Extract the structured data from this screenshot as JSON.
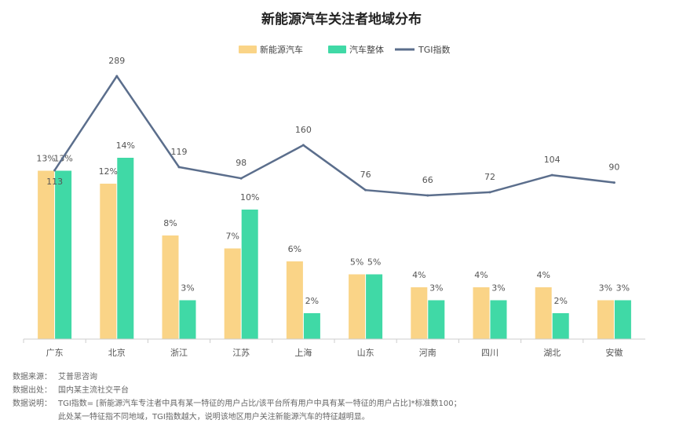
{
  "chart_data": {
    "type": "bar",
    "title": "新能源汽车关注者地域分布",
    "categories": [
      "广东",
      "北京",
      "浙江",
      "江苏",
      "上海",
      "山东",
      "河南",
      "四川",
      "湖北",
      "安徽"
    ],
    "series": [
      {
        "name": "新能源汽车",
        "type": "bar",
        "color": "#fad487",
        "values": [
          13,
          12,
          8,
          7,
          6,
          5,
          4,
          4,
          4,
          3
        ],
        "labels": [
          "13%",
          "12%",
          "8%",
          "7%",
          "6%",
          "5%",
          "4%",
          "4%",
          "4%",
          "3%"
        ]
      },
      {
        "name": "汽车整体",
        "type": "bar",
        "color": "#40d9a6",
        "values": [
          13,
          14,
          3,
          10,
          2,
          5,
          3,
          3,
          2,
          3
        ],
        "labels": [
          "13%",
          "14%",
          "3%",
          "10%",
          "2%",
          "5%",
          "3%",
          "3%",
          "2%",
          "3%"
        ]
      },
      {
        "name": "TGI指数",
        "type": "line",
        "color": "#5b6e8c",
        "values": [
          113,
          289,
          119,
          98,
          160,
          76,
          66,
          72,
          104,
          90
        ]
      }
    ],
    "ylim": [
      0,
      15
    ],
    "y2lim": [
      0,
      400
    ],
    "grid": false,
    "legend": "top-center"
  },
  "footer": {
    "source_key": "数据来源：",
    "source_val": "艾普思咨询",
    "origin_key": "数据出处：",
    "origin_val": "国内某主流社交平台",
    "note_key": "数据说明：",
    "note_line1": "TGI指数= [新能源汽车专注者中具有某一特征的用户占比/该平台所有用户中具有某一特征的用户占比]*标准数100；",
    "note_line2": "此处某一特征指不同地域，TGI指数越大，说明该地区用户关注新能源汽车的特征越明显。"
  },
  "colors": {
    "axis": "#cccccc",
    "text": "#555555"
  }
}
